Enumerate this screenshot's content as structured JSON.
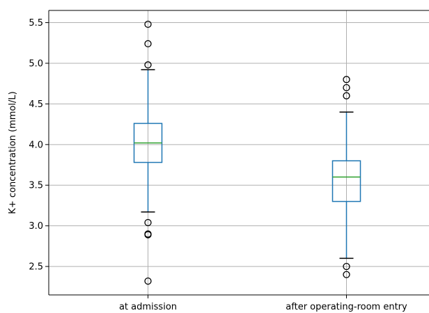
{
  "chart_data": {
    "type": "box",
    "title": "",
    "xlabel": "",
    "ylabel": "K+ concentration (mmol/L)",
    "ylim": [
      2.15,
      5.65
    ],
    "yticks": [
      2.5,
      3.0,
      3.5,
      4.0,
      4.5,
      5.0,
      5.5
    ],
    "ytick_labels": [
      "2.5",
      "3.0",
      "3.5",
      "4.0",
      "4.5",
      "5.0",
      "5.5"
    ],
    "grid": true,
    "categories": [
      "at admission",
      "after operating-room entry"
    ],
    "series": [
      {
        "category": "at admission",
        "whisker_low": 3.17,
        "q1": 3.78,
        "median": 4.02,
        "q3": 4.26,
        "whisker_high": 4.92,
        "outliers": [
          5.48,
          5.24,
          4.98,
          3.04,
          2.9,
          2.89,
          2.32
        ]
      },
      {
        "category": "after operating-room entry",
        "whisker_low": 2.6,
        "q1": 3.3,
        "median": 3.6,
        "q3": 3.8,
        "whisker_high": 4.4,
        "outliers": [
          4.8,
          4.7,
          4.6,
          2.5,
          2.4
        ]
      }
    ],
    "colors": {
      "box": "#1f77b4",
      "median": "#2ca02c",
      "grid": "#b0b0b0",
      "axis": "#000000"
    }
  }
}
